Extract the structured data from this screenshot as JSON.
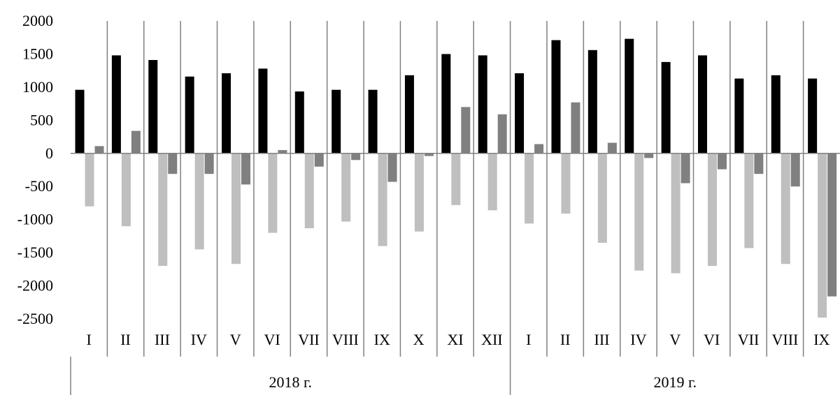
{
  "chart_data": {
    "type": "bar",
    "title": "",
    "xlabel": "",
    "ylabel": "",
    "ylim": [
      -2500,
      2000
    ],
    "yticks": [
      2000,
      1500,
      1000,
      500,
      0,
      -500,
      -1000,
      -1500,
      -2000,
      -2500
    ],
    "yticklabels": [
      "2000",
      "1500",
      "1000",
      "500",
      "0",
      "-500",
      "-1000",
      "-1500",
      "-2000",
      "-2500"
    ],
    "groups": [
      {
        "label": "2018 г.",
        "size": 12
      },
      {
        "label": "2019 г.",
        "size": 9
      }
    ],
    "categories": [
      "I",
      "II",
      "III",
      "IV",
      "V",
      "VI",
      "VII",
      "VIII",
      "IX",
      "X",
      "XI",
      "XII",
      "I",
      "II",
      "III",
      "IV",
      "V",
      "VI",
      "VII",
      "VIII",
      "IX"
    ],
    "series": [
      {
        "color": "#000000",
        "values": [
          960,
          1480,
          1410,
          1160,
          1210,
          1280,
          935,
          960,
          960,
          1180,
          1500,
          1480,
          1210,
          1710,
          1560,
          1730,
          1380,
          1480,
          1130,
          1180,
          1130
        ]
      },
      {
        "color": "#bfbfbf",
        "values": [
          -800,
          -1100,
          -1700,
          -1450,
          -1670,
          -1200,
          -1130,
          -1030,
          -1400,
          -1180,
          -780,
          -860,
          -1060,
          -910,
          -1350,
          -1770,
          -1810,
          -1700,
          -1430,
          -1670,
          -2480
        ]
      },
      {
        "color": "#808080",
        "values": [
          110,
          340,
          -310,
          -310,
          -470,
          50,
          -200,
          -100,
          -430,
          -40,
          700,
          590,
          140,
          770,
          160,
          -70,
          -450,
          -240,
          -310,
          -500,
          -2160
        ]
      }
    ],
    "grid": false,
    "legend": "none"
  }
}
